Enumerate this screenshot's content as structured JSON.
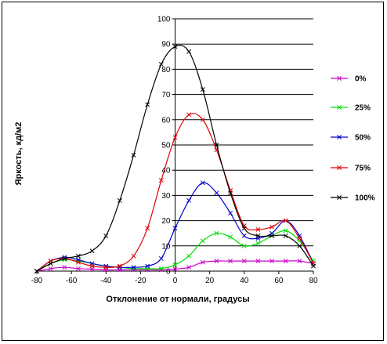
{
  "chart_data": {
    "type": "line",
    "xlabel": "Отклонение от нормали, градусы",
    "ylabel": "Яркость, кд/м2",
    "xlim": [
      -80,
      80
    ],
    "ylim": [
      0,
      100
    ],
    "xticks": [
      -80,
      -60,
      -40,
      -20,
      0,
      20,
      40,
      60,
      80
    ],
    "yticks": [
      0,
      10,
      20,
      30,
      40,
      50,
      60,
      70,
      80,
      90,
      100
    ],
    "grid": "horizontal",
    "legend_position": "right",
    "series": [
      {
        "name": "0%",
        "color": "#cc00cc",
        "points": [
          [
            -80,
            0
          ],
          [
            -72,
            1
          ],
          [
            -64,
            1.5
          ],
          [
            -56,
            1
          ],
          [
            -48,
            0.8
          ],
          [
            -40,
            0.5
          ],
          [
            -32,
            0.5
          ],
          [
            -24,
            0.5
          ],
          [
            -16,
            0.5
          ],
          [
            -8,
            0.5
          ],
          [
            0,
            0.8
          ],
          [
            8,
            1.5
          ],
          [
            16,
            3.5
          ],
          [
            24,
            4
          ],
          [
            32,
            4
          ],
          [
            40,
            4
          ],
          [
            48,
            4
          ],
          [
            56,
            4
          ],
          [
            64,
            4
          ],
          [
            72,
            4
          ],
          [
            80,
            3
          ]
        ]
      },
      {
        "name": "25%",
        "color": "#00dd00",
        "points": [
          [
            -80,
            0
          ],
          [
            -72,
            3
          ],
          [
            -64,
            4.5
          ],
          [
            -56,
            4
          ],
          [
            -48,
            3
          ],
          [
            -40,
            2
          ],
          [
            -32,
            1.5
          ],
          [
            -24,
            1
          ],
          [
            -16,
            1
          ],
          [
            -8,
            1
          ],
          [
            0,
            2.5
          ],
          [
            8,
            6
          ],
          [
            16,
            12
          ],
          [
            24,
            15
          ],
          [
            32,
            13.5
          ],
          [
            40,
            10
          ],
          [
            48,
            11
          ],
          [
            56,
            14
          ],
          [
            64,
            16
          ],
          [
            72,
            12
          ],
          [
            80,
            4
          ]
        ]
      },
      {
        "name": "50%",
        "color": "#0000cc",
        "points": [
          [
            -80,
            0
          ],
          [
            -72,
            4
          ],
          [
            -64,
            5.5
          ],
          [
            -56,
            4.5
          ],
          [
            -48,
            3
          ],
          [
            -40,
            2
          ],
          [
            -32,
            1.5
          ],
          [
            -24,
            1.5
          ],
          [
            -16,
            2
          ],
          [
            -8,
            5
          ],
          [
            0,
            17
          ],
          [
            8,
            28
          ],
          [
            16,
            35
          ],
          [
            24,
            31
          ],
          [
            32,
            23
          ],
          [
            40,
            14
          ],
          [
            48,
            13
          ],
          [
            56,
            15
          ],
          [
            64,
            20
          ],
          [
            72,
            14
          ],
          [
            80,
            3
          ]
        ]
      },
      {
        "name": "75%",
        "color": "#dd0000",
        "points": [
          [
            -80,
            0
          ],
          [
            -72,
            4
          ],
          [
            -64,
            5
          ],
          [
            -56,
            3.5
          ],
          [
            -48,
            2
          ],
          [
            -40,
            1.5
          ],
          [
            -32,
            2
          ],
          [
            -24,
            6
          ],
          [
            -16,
            17
          ],
          [
            -8,
            36
          ],
          [
            0,
            53
          ],
          [
            8,
            62
          ],
          [
            16,
            60
          ],
          [
            24,
            48
          ],
          [
            32,
            32
          ],
          [
            40,
            18
          ],
          [
            48,
            16.5
          ],
          [
            56,
            17.5
          ],
          [
            64,
            20
          ],
          [
            72,
            13
          ],
          [
            80,
            3
          ]
        ]
      },
      {
        "name": "100%",
        "color": "#000000",
        "points": [
          [
            -80,
            0
          ],
          [
            -72,
            3
          ],
          [
            -64,
            5
          ],
          [
            -56,
            6
          ],
          [
            -48,
            8
          ],
          [
            -40,
            14
          ],
          [
            -32,
            28
          ],
          [
            -24,
            46
          ],
          [
            -16,
            66
          ],
          [
            -8,
            82
          ],
          [
            0,
            89
          ],
          [
            8,
            87
          ],
          [
            16,
            72
          ],
          [
            24,
            50
          ],
          [
            32,
            31
          ],
          [
            40,
            17
          ],
          [
            48,
            14
          ],
          [
            56,
            14
          ],
          [
            64,
            14
          ],
          [
            72,
            10
          ],
          [
            80,
            2
          ]
        ]
      }
    ]
  }
}
